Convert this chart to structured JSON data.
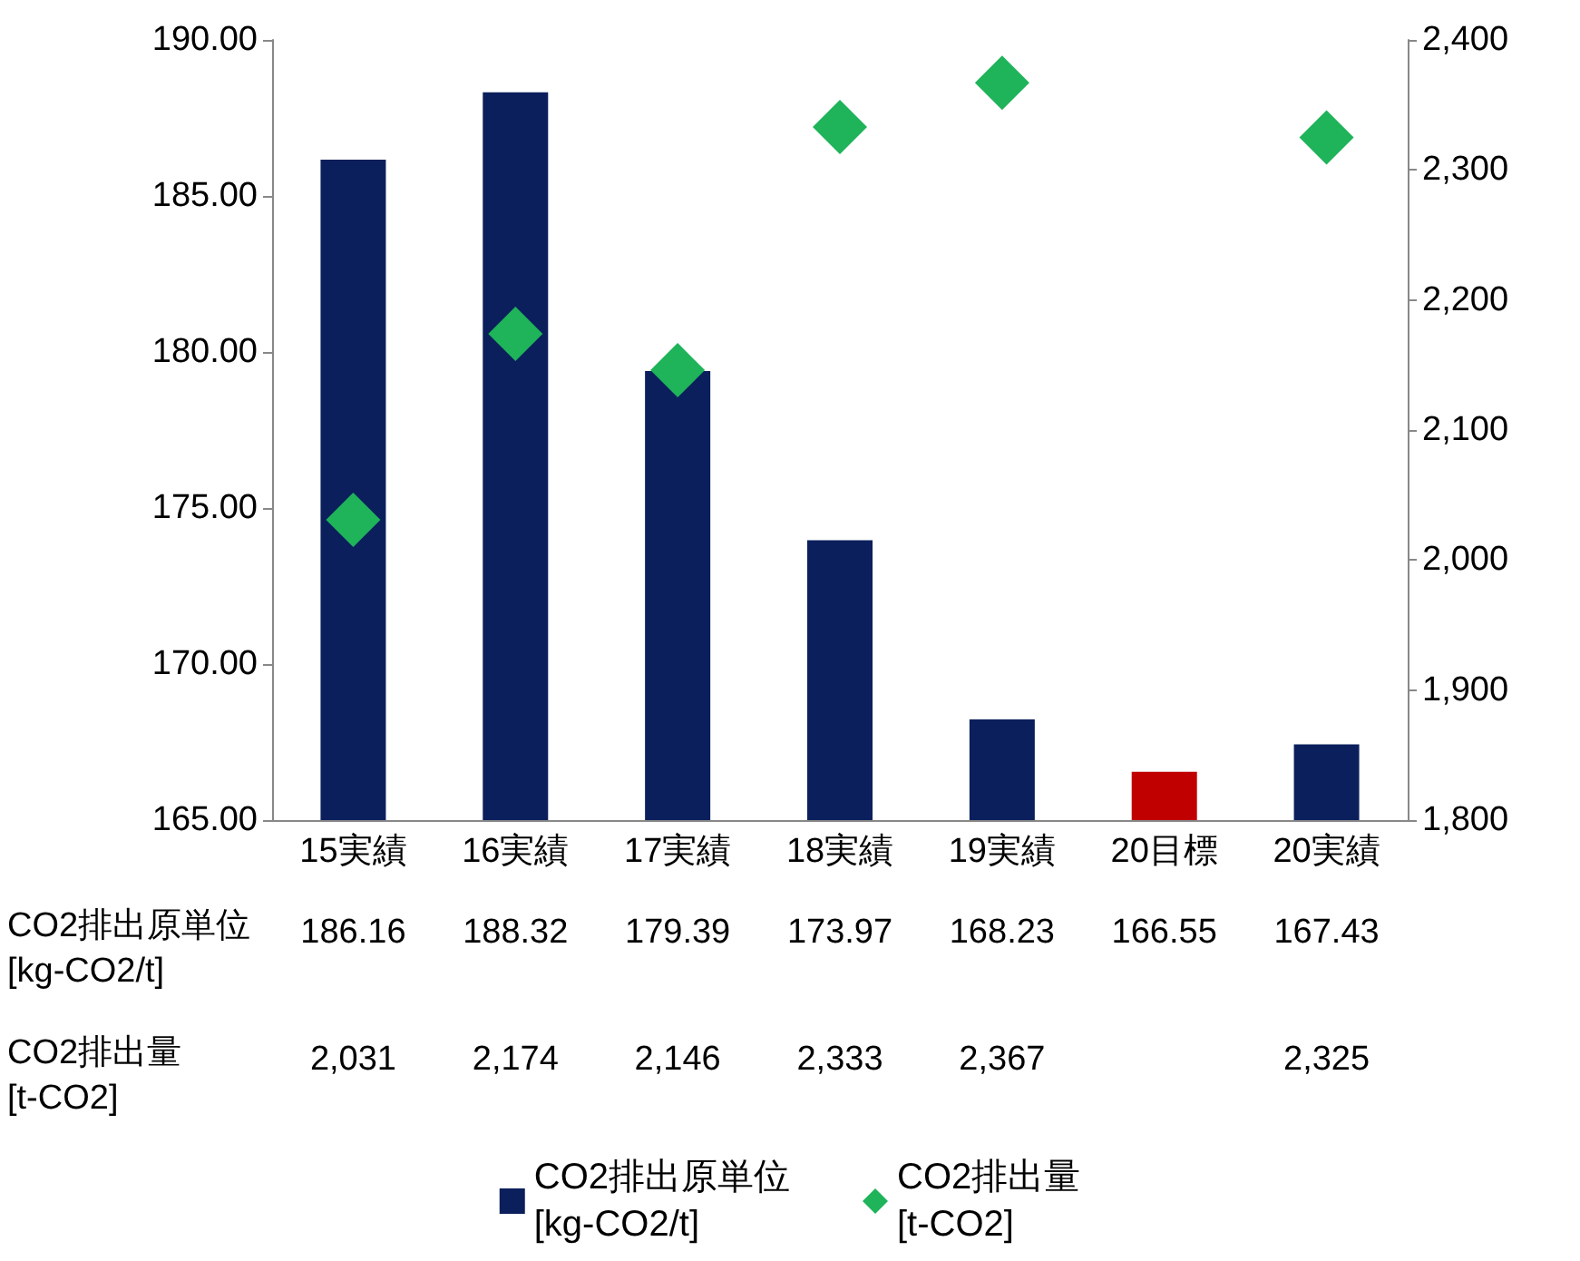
{
  "chart_data": {
    "type": "bar",
    "categories": [
      "15実績",
      "16実績",
      "17実績",
      "18実績",
      "19実績",
      "20目標",
      "20実績"
    ],
    "series": [
      {
        "name": "CO2排出原単位 [kg-CO2/t]",
        "color": "#0b1f5c",
        "colors": [
          "#0b1f5c",
          "#0b1f5c",
          "#0b1f5c",
          "#0b1f5c",
          "#0b1f5c",
          "#c00000",
          "#0b1f5c"
        ],
        "values": [
          186.16,
          188.32,
          179.39,
          173.97,
          168.23,
          166.55,
          167.43
        ],
        "value_labels": [
          "186.16",
          "188.32",
          "179.39",
          "173.97",
          "168.23",
          "166.55",
          "167.43"
        ]
      },
      {
        "name": "CO2排出量 [t-CO2]",
        "type": "scatter",
        "axis": "y2",
        "marker": "diamond",
        "color": "#1fb35a",
        "values": [
          2031,
          2174,
          2146,
          2333,
          2367,
          null,
          2325
        ],
        "value_labels": [
          "2,031",
          "2,174",
          "2,146",
          "2,333",
          "2,367",
          null,
          "2,325"
        ]
      }
    ],
    "ylim": [
      165,
      190
    ],
    "yticks": [
      {
        "value": 165,
        "label": "165.00"
      },
      {
        "value": 170,
        "label": "170.00"
      },
      {
        "value": 175,
        "label": "175.00"
      },
      {
        "value": 180,
        "label": "180.00"
      },
      {
        "value": 185,
        "label": "185.00"
      },
      {
        "value": 190,
        "label": "190.00"
      }
    ],
    "y2lim": [
      1800,
      2400
    ],
    "y2ticks": [
      {
        "value": 1800,
        "label": "1,800"
      },
      {
        "value": 1900,
        "label": "1,900"
      },
      {
        "value": 2000,
        "label": "2,000"
      },
      {
        "value": 2100,
        "label": "2,100"
      },
      {
        "value": 2200,
        "label": "2,200"
      },
      {
        "value": 2300,
        "label": "2,300"
      },
      {
        "value": 2400,
        "label": "2,400"
      }
    ],
    "grid": false,
    "legend": "bottom"
  }
}
